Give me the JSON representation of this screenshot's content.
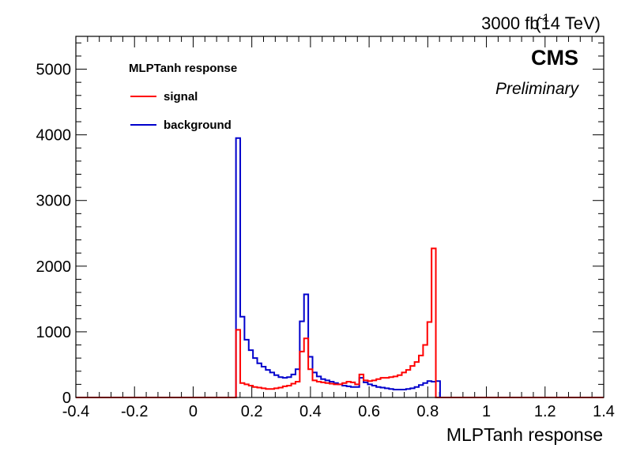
{
  "header": {
    "lumi_main": "3000 fb",
    "lumi_exp": "-1",
    "lumi_energy": "(14 TeV)",
    "experiment": "CMS",
    "status": "Preliminary"
  },
  "legend": {
    "title": "MLPTanh response",
    "entries": [
      {
        "label": "signal",
        "color": "#ff0000"
      },
      {
        "label": "background",
        "color": "#0000cc"
      }
    ]
  },
  "chart_data": {
    "type": "histogram",
    "xlabel": "MLPTanh response",
    "ylabel": "",
    "xlim": [
      -0.4,
      1.4
    ],
    "ylim": [
      0,
      5500
    ],
    "x_ticks": [
      -0.4,
      -0.2,
      0,
      0.2,
      0.4,
      0.6,
      0.8,
      1,
      1.2,
      1.4
    ],
    "x_tick_labels": [
      "-0.4",
      "-0.2",
      "0",
      "0.2",
      "0.4",
      "0.6",
      "0.8",
      "1",
      "1.2",
      "1.4"
    ],
    "y_ticks": [
      0,
      1000,
      2000,
      3000,
      4000,
      5000
    ],
    "y_tick_labels": [
      "0",
      "1000",
      "2000",
      "3000",
      "4000",
      "5000"
    ],
    "bin_edges": [
      0.146,
      0.1605,
      0.175,
      0.1895,
      0.204,
      0.2185,
      0.233,
      0.2475,
      0.262,
      0.2765,
      0.291,
      0.3055,
      0.32,
      0.3345,
      0.349,
      0.3635,
      0.378,
      0.3925,
      0.407,
      0.4215,
      0.436,
      0.4505,
      0.465,
      0.4795,
      0.494,
      0.5085,
      0.523,
      0.5375,
      0.552,
      0.5665,
      0.581,
      0.5955,
      0.61,
      0.6245,
      0.639,
      0.6535,
      0.668,
      0.6825,
      0.697,
      0.7115,
      0.726,
      0.7405,
      0.755,
      0.7695,
      0.784,
      0.7985,
      0.813,
      0.8275,
      0.842,
      0.8565,
      0.871,
      0.8855
    ],
    "series": [
      {
        "name": "signal",
        "color": "#ff0000",
        "values": [
          1030,
          220,
          200,
          180,
          160,
          150,
          140,
          130,
          130,
          140,
          150,
          170,
          180,
          210,
          240,
          700,
          900,
          430,
          260,
          240,
          230,
          220,
          210,
          200,
          200,
          220,
          240,
          230,
          200,
          350,
          260,
          250,
          260,
          280,
          300,
          300,
          310,
          320,
          340,
          380,
          420,
          480,
          540,
          640,
          800,
          1150,
          2270,
          0,
          0,
          0,
          0
        ]
      },
      {
        "name": "background",
        "color": "#0000cc",
        "values": [
          3950,
          1230,
          880,
          720,
          600,
          520,
          470,
          420,
          380,
          340,
          310,
          300,
          310,
          350,
          430,
          1160,
          1570,
          620,
          380,
          320,
          280,
          260,
          240,
          220,
          200,
          180,
          170,
          160,
          160,
          300,
          230,
          200,
          180,
          160,
          150,
          140,
          130,
          120,
          120,
          120,
          130,
          140,
          160,
          190,
          220,
          250,
          240,
          250,
          0,
          0,
          0
        ]
      }
    ]
  }
}
